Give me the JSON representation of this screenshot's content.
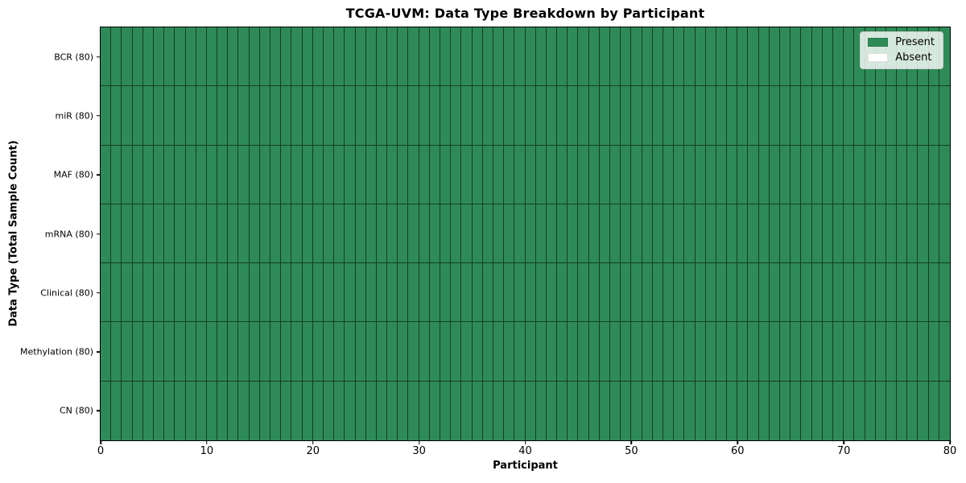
{
  "figure": {
    "title": "TCGA-UVM: Data Type Breakdown by Participant",
    "xlabel": "Participant",
    "ylabel": "Data Type (Total Sample Count)"
  },
  "legend": {
    "position": "upper-right",
    "items": [
      {
        "name": "present",
        "label": "Present",
        "color": "#2e8b57"
      },
      {
        "name": "absent",
        "label": "Absent",
        "color": "#ffffff"
      }
    ]
  },
  "chart_data": {
    "type": "heatmap",
    "title": "TCGA-UVM: Data Type Breakdown by Participant",
    "xlabel": "Participant",
    "ylabel": "Data Type (Total Sample Count)",
    "n_participants": 80,
    "xlim": [
      0,
      80
    ],
    "x_ticks": [
      0,
      10,
      20,
      30,
      40,
      50,
      60,
      70,
      80
    ],
    "grid": false,
    "legend_position": "upper right",
    "rows": [
      {
        "label": "BCR (80)",
        "data_type": "BCR",
        "total_samples": 80,
        "present_count": 80,
        "absent_count": 0
      },
      {
        "label": "miR (80)",
        "data_type": "miR",
        "total_samples": 80,
        "present_count": 80,
        "absent_count": 0
      },
      {
        "label": "MAF (80)",
        "data_type": "MAF",
        "total_samples": 80,
        "present_count": 80,
        "absent_count": 0
      },
      {
        "label": "mRNA (80)",
        "data_type": "mRNA",
        "total_samples": 80,
        "present_count": 80,
        "absent_count": 0
      },
      {
        "label": "Clinical (80)",
        "data_type": "Clinical",
        "total_samples": 80,
        "present_count": 80,
        "absent_count": 0
      },
      {
        "label": "Methylation (80)",
        "data_type": "Methylation",
        "total_samples": 80,
        "present_count": 80,
        "absent_count": 0
      },
      {
        "label": "CN (80)",
        "data_type": "CN",
        "total_samples": 80,
        "present_count": 80,
        "absent_count": 0
      }
    ],
    "colors": {
      "present": "#2e8b57",
      "absent": "#ffffff",
      "cell_edge": "rgba(0,0,0,0.55)",
      "spine": "#000000"
    }
  }
}
